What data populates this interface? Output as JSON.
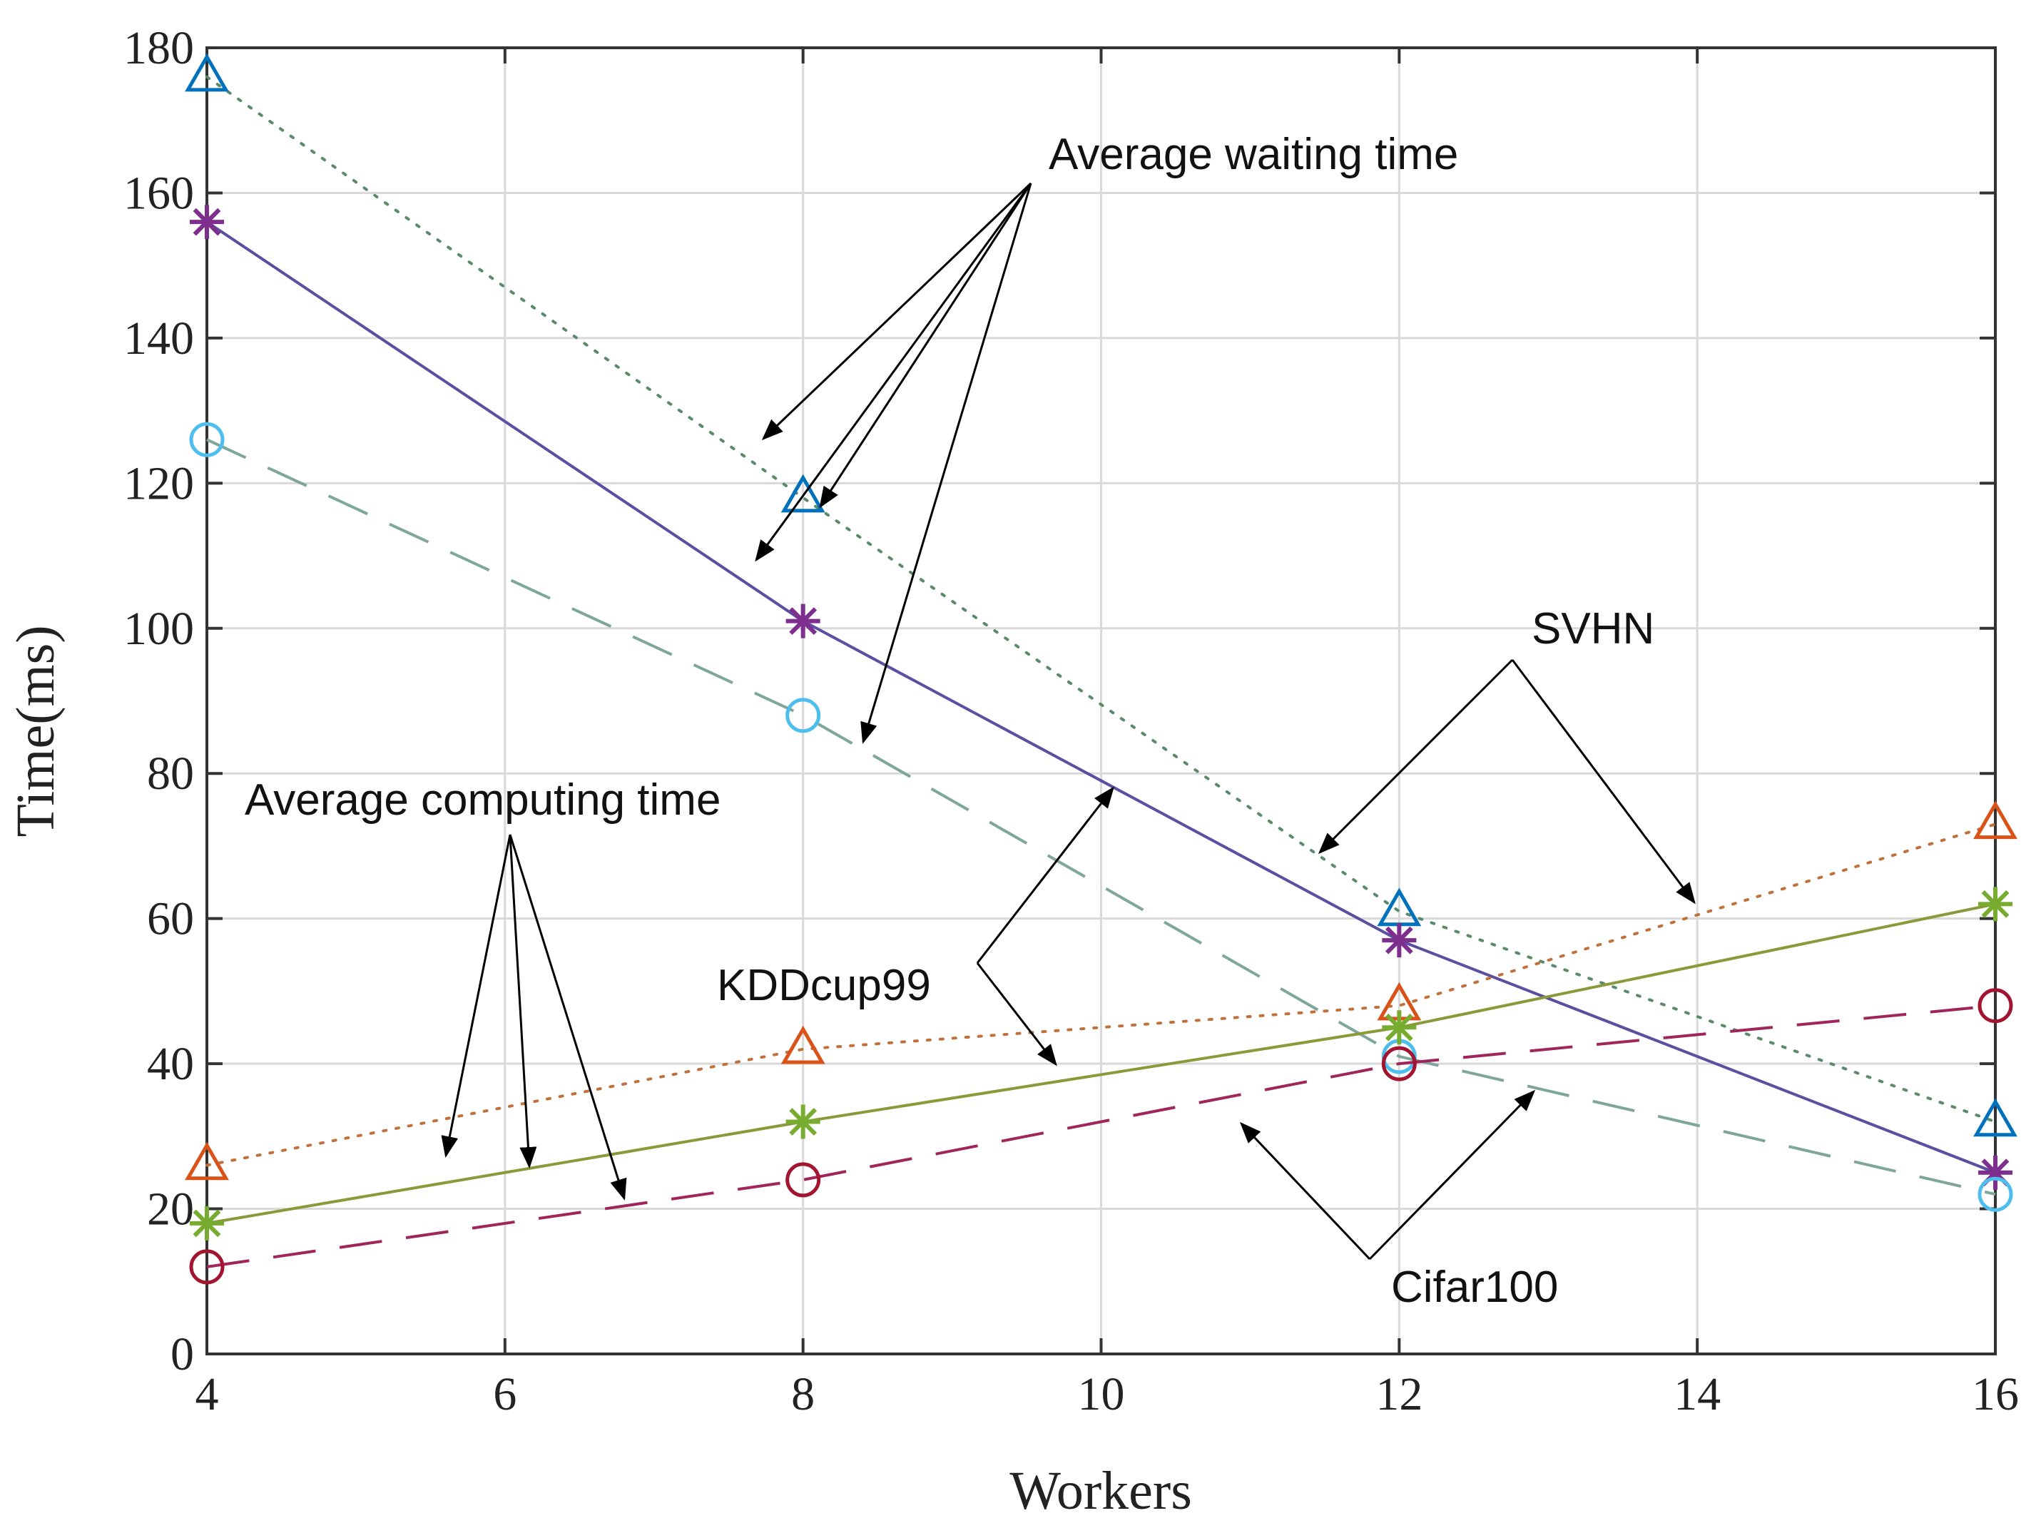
{
  "chart_data": {
    "type": "line",
    "title": "",
    "xlabel": "Workers",
    "ylabel": "Time(ms)",
    "x": [
      4,
      8,
      12,
      16
    ],
    "xlim": [
      4,
      16
    ],
    "ylim": [
      0,
      180
    ],
    "xticks": [
      "4",
      "6",
      "8",
      "10",
      "12",
      "14",
      "16"
    ],
    "yticks": [
      "0",
      "20",
      "40",
      "60",
      "80",
      "100",
      "120",
      "140",
      "160",
      "180"
    ],
    "grid": true,
    "series": [
      {
        "name": "SVHN waiting",
        "dataset": "SVHN",
        "metric": "Average waiting time",
        "values": [
          176,
          118,
          61,
          32
        ],
        "color": "#0072BD",
        "line_color": "#5a8a6a",
        "marker": "triangle",
        "linestyle": "dotted"
      },
      {
        "name": "KDDcup99 waiting",
        "dataset": "KDDcup99",
        "metric": "Average waiting time",
        "values": [
          156,
          101,
          57,
          25
        ],
        "color": "#7E2F8E",
        "line_color": "#5a4fa0",
        "marker": "star",
        "linestyle": "solid"
      },
      {
        "name": "Cifar100 waiting",
        "dataset": "Cifar100",
        "metric": "Average waiting time",
        "values": [
          126,
          88,
          41,
          22
        ],
        "color": "#4DBEEE",
        "line_color": "#7fa69a",
        "marker": "circle",
        "linestyle": "dashed"
      },
      {
        "name": "SVHN computing",
        "dataset": "SVHN",
        "metric": "Average computing time",
        "values": [
          26,
          42,
          48,
          73
        ],
        "color": "#D95319",
        "line_color": "#c0703a",
        "marker": "triangle",
        "linestyle": "dotted"
      },
      {
        "name": "KDDcup99 computing",
        "dataset": "KDDcup99",
        "metric": "Average computing time",
        "values": [
          18,
          32,
          45,
          62
        ],
        "color": "#77AC30",
        "line_color": "#8a9a3a",
        "marker": "star",
        "linestyle": "solid"
      },
      {
        "name": "Cifar100 computing",
        "dataset": "Cifar100",
        "metric": "Average computing time",
        "values": [
          12,
          24,
          40,
          48
        ],
        "color": "#A2142F",
        "line_color": "#a0265a",
        "marker": "circle",
        "linestyle": "dashed"
      }
    ],
    "annotations": {
      "waiting": "Average waiting time",
      "computing": "Average computing time",
      "svhn": "SVHN",
      "kdd": "KDDcup99",
      "cifar": "Cifar100"
    }
  }
}
